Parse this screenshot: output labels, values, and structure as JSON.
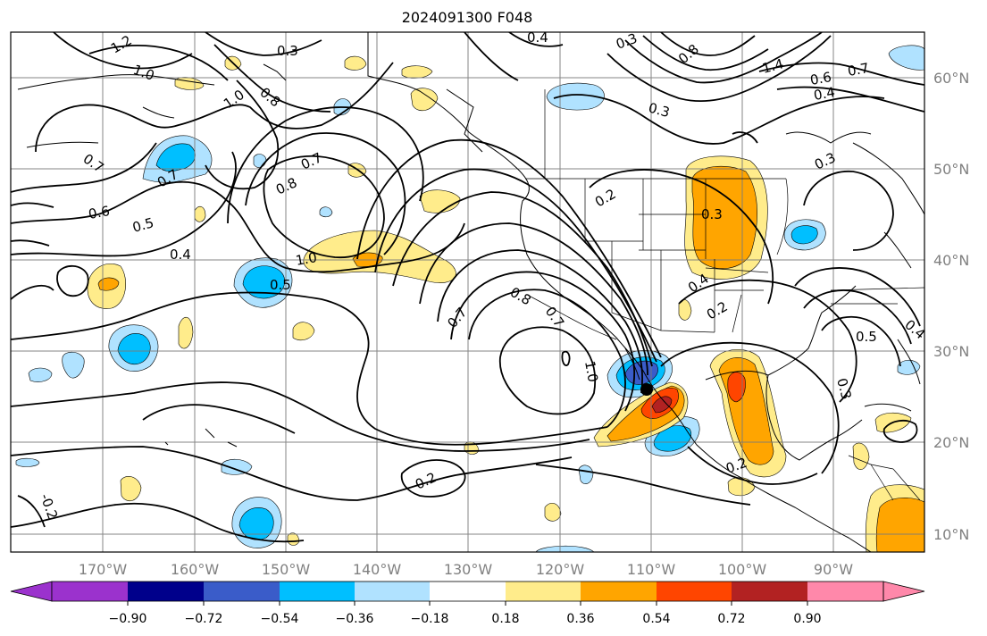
{
  "title": "2024091300 F048",
  "longitude_labels": [
    "170°W",
    "160°W",
    "150°W",
    "140°W",
    "130°W",
    "120°W",
    "110°W",
    "100°W",
    "90°W"
  ],
  "latitude_labels": [
    "60°N",
    "50°N",
    "40°N",
    "30°N",
    "20°N",
    "10°N"
  ],
  "contour_labels": [
    "1.2",
    "1.0",
    "1.0",
    "0.8",
    "0.3",
    "0.4",
    "0.3",
    "0.8",
    "1.4",
    "0.6",
    "0.7",
    "0.4",
    "0.3",
    "0.7",
    "0.6",
    "0.5",
    "0.4",
    "0.7",
    "0.8",
    "0.7",
    "1.0",
    "0.5",
    "0.2",
    "0.3",
    "0.3",
    "0.4",
    "0.2",
    "0.5",
    "0.4",
    "0.3",
    "0.8",
    "0.7",
    "1.0",
    "0.2",
    "0.2",
    "-0.2",
    "0.7"
  ],
  "colorbar": {
    "ticks": [
      "−0.90",
      "−0.72",
      "−0.54",
      "−0.36",
      "−0.18",
      "0.18",
      "0.36",
      "0.54",
      "0.72",
      "0.90"
    ],
    "colors": [
      "#9b32cd",
      "#00008b",
      "#3a5cc9",
      "#00bfff",
      "#b0e2ff",
      "#ffffff",
      "#ffec8b",
      "#ffa500",
      "#ff4500",
      "#b22222",
      "#ff88aa"
    ]
  },
  "colors": {
    "neg_light": "#b0e2ff",
    "neg_mid": "#00bfff",
    "neg_dark": "#3a5cc9",
    "pos_light": "#ffec8b",
    "pos_mid": "#ffa500",
    "pos_dark": "#ff4500",
    "pos_darker": "#b22222"
  }
}
